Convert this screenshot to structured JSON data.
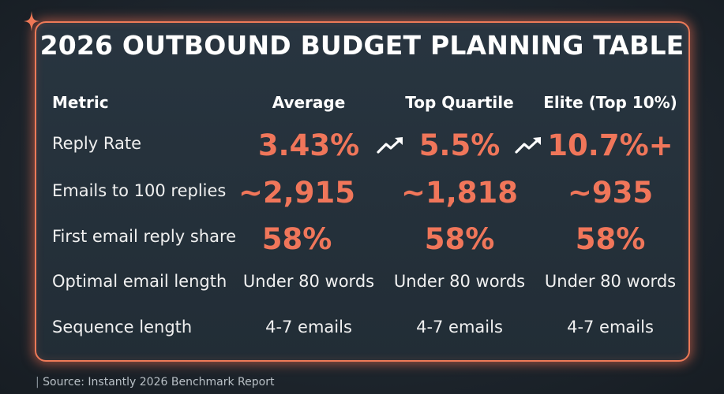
{
  "title": "2026 OUTBOUND BUDGET PLANNING TABLE",
  "headers": {
    "metric": "Metric",
    "average": "Average",
    "top_quartile": "Top Quartile",
    "elite": "Elite (Top 10%)"
  },
  "rows": [
    {
      "metric": "Reply Rate",
      "average": "3.43%",
      "top_quartile": "5.5%",
      "elite": "10.7%+"
    },
    {
      "metric": "Emails to 100 replies",
      "average": "~2,915",
      "top_quartile": "~1,818",
      "elite": "~935"
    },
    {
      "metric": "First email reply share",
      "average": "58%",
      "top_quartile": "58%",
      "elite": "58%"
    },
    {
      "metric": "Optimal email length",
      "average": "Under 80 words",
      "top_quartile": "Under 80 words",
      "elite": "Under 80 words"
    },
    {
      "metric": "Sequence length",
      "average": "4-7 emails",
      "top_quartile": "4-7 emails",
      "elite": "4-7 emails"
    }
  ],
  "icons": {
    "decoration": "sparkle-icon",
    "trend": "trend-up-arrow-icon"
  },
  "colors": {
    "accent": "#f0765a",
    "border": "#ee7a58",
    "background": "#1e262e",
    "text": "#ffffff"
  },
  "source": "Source: Instantly 2026 Benchmark Report"
}
